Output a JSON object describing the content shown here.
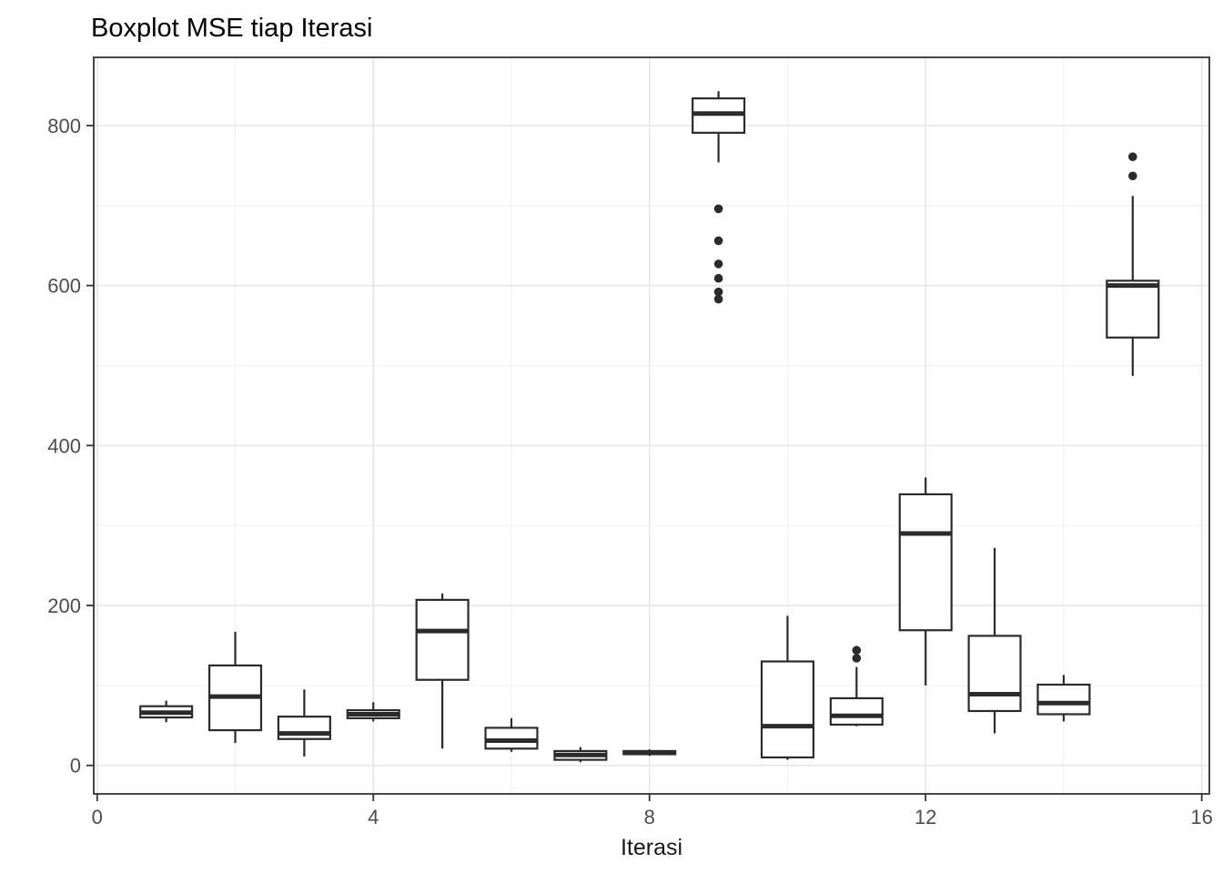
{
  "chart_data": {
    "type": "boxplot",
    "title": "Boxplot MSE tiap Iterasi",
    "xlabel": "Iterasi",
    "ylabel": "",
    "xlim": [
      -0.05,
      16.11
    ],
    "ylim": [
      -35.6,
      885.3
    ],
    "x_ticks": [
      0,
      4,
      8,
      12,
      16
    ],
    "x_minor_gridlines": [
      2,
      6,
      10,
      14
    ],
    "y_ticks": [
      0,
      200,
      400,
      600,
      800
    ],
    "y_minor_gridlines": [
      100,
      300,
      500,
      700
    ],
    "grid": true,
    "legend": false,
    "box_width": 0.75,
    "boxes": [
      {
        "x": 1,
        "whisker_low": 54,
        "q1": 60,
        "median": 66,
        "q3": 74,
        "whisker_high": 81,
        "outliers": []
      },
      {
        "x": 2,
        "whisker_low": 28,
        "q1": 44,
        "median": 86,
        "q3": 125,
        "whisker_high": 167,
        "outliers": []
      },
      {
        "x": 3,
        "whisker_low": 11,
        "q1": 33,
        "median": 40,
        "q3": 61,
        "whisker_high": 95,
        "outliers": []
      },
      {
        "x": 4,
        "whisker_low": 55,
        "q1": 59,
        "median": 64,
        "q3": 69,
        "whisker_high": 79,
        "outliers": []
      },
      {
        "x": 5,
        "whisker_low": 21,
        "q1": 107,
        "median": 168,
        "q3": 207,
        "whisker_high": 215,
        "outliers": []
      },
      {
        "x": 6,
        "whisker_low": 17,
        "q1": 21,
        "median": 31,
        "q3": 47,
        "whisker_high": 59,
        "outliers": []
      },
      {
        "x": 7,
        "whisker_low": 4,
        "q1": 7,
        "median": 13,
        "q3": 18,
        "whisker_high": 23,
        "outliers": []
      },
      {
        "x": 8,
        "whisker_low": 12,
        "q1": 14,
        "median": 16,
        "q3": 18,
        "whisker_high": 20,
        "outliers": []
      },
      {
        "x": 9,
        "whisker_low": 754,
        "q1": 791,
        "median": 815,
        "q3": 834,
        "whisker_high": 843,
        "outliers": [
          696,
          656,
          627,
          609,
          592,
          583
        ]
      },
      {
        "x": 10,
        "whisker_low": 7,
        "q1": 10,
        "median": 49,
        "q3": 130,
        "whisker_high": 187,
        "outliers": []
      },
      {
        "x": 11,
        "whisker_low": 49,
        "q1": 51,
        "median": 62,
        "q3": 84,
        "whisker_high": 123,
        "outliers": [
          134,
          144
        ]
      },
      {
        "x": 12,
        "whisker_low": 100,
        "q1": 169,
        "median": 290,
        "q3": 339,
        "whisker_high": 360,
        "outliers": []
      },
      {
        "x": 13,
        "whisker_low": 40,
        "q1": 68,
        "median": 89,
        "q3": 162,
        "whisker_high": 272,
        "outliers": []
      },
      {
        "x": 14,
        "whisker_low": 55,
        "q1": 64,
        "median": 78,
        "q3": 101,
        "whisker_high": 113,
        "outliers": []
      },
      {
        "x": 15,
        "whisker_low": 487,
        "q1": 535,
        "median": 600,
        "q3": 606,
        "whisker_high": 712,
        "outliers": [
          737,
          761
        ]
      }
    ],
    "colors": {
      "stroke": "#2b2b2b",
      "box_fill": "#ffffff",
      "grid_major": "#e7e7e7",
      "grid_minor": "#efefef",
      "panel_border": "#333333",
      "tick_mark": "#333333",
      "tick_label": "#4d4d4d",
      "title": "#000000",
      "background": "#ffffff"
    }
  }
}
